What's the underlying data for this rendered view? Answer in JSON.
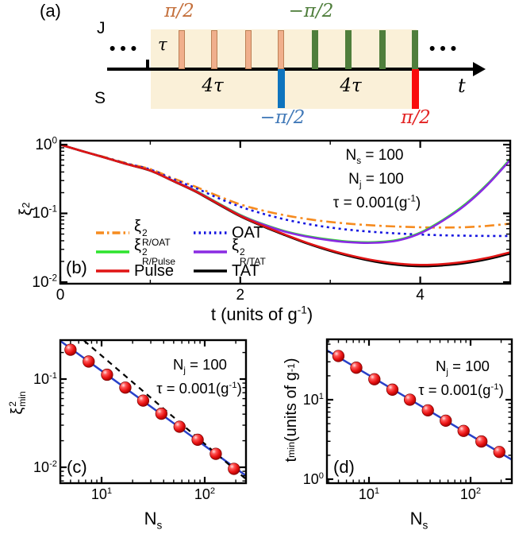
{
  "pulse_diagram": {
    "panel_label": "(a)",
    "j_label": "J",
    "s_label": "S",
    "tau_label": "τ",
    "four_tau_label": "4τ",
    "t_label": "t",
    "dots": "•••",
    "top_left_pulse_label": "π/2",
    "top_right_pulse_label": "−π/2",
    "bottom_left_pulse_label": "−π/2",
    "bottom_right_pulse_label": "π/2",
    "colors": {
      "background": "#FAF0D8",
      "j_pulse": "#F0AF8C",
      "j_pulse_border": "#BC8055",
      "neg_pulse": "#4F7E3C",
      "s_pulse_blue": "#0E74BE",
      "s_pulse_red": "#F90D0D",
      "top_left_text": "#C4703C",
      "top_right_text": "#4F7E3C",
      "bottom_left_text": "#4179B8",
      "bottom_right_text": "#E32222"
    }
  },
  "chart_data": {
    "b": {
      "type": "line",
      "panel_label": "(b)",
      "xlabel": [
        {
          "v": "t (units of g",
          "sup": "-1"
        },
        {
          "v": ")"
        }
      ],
      "ylabel": [
        {
          "v": "ξ",
          "sup": "2"
        }
      ],
      "xlim": [
        0,
        5
      ],
      "ylim": [
        0.0095,
        1.14
      ],
      "yscale": "log",
      "grid": false,
      "xticks": [
        {
          "v": 0,
          "label": [
            {
              "v": "0"
            }
          ]
        },
        {
          "v": 2,
          "label": [
            {
              "v": "2"
            }
          ]
        },
        {
          "v": 4,
          "label": [
            {
              "v": "4"
            }
          ]
        }
      ],
      "xminor": [
        1,
        3
      ],
      "yticks": [
        {
          "v": 1,
          "label": [
            {
              "v": "10",
              "sup": "0"
            }
          ]
        },
        {
          "v": 0.1,
          "label": [
            {
              "v": "10",
              "sup": "-1"
            }
          ]
        },
        {
          "v": 0.01,
          "label": [
            {
              "v": "10",
              "sup": "-2"
            }
          ]
        }
      ],
      "annotations": [
        [
          {
            "v": "N",
            "sub": "s"
          },
          {
            "v": " = 100"
          }
        ],
        [
          {
            "v": "N",
            "sub": "j"
          },
          {
            "v": " = 100"
          }
        ],
        [
          {
            "v": "τ = 0.001(g",
            "sup": "-1"
          },
          {
            "v": ")"
          }
        ]
      ],
      "legend_position": "lower-left-inside",
      "legend": [
        {
          "label": [
            {
              "v": "ξ",
              "sup": "2",
              "sub": "R/OAT"
            }
          ],
          "color": "#F68B1F",
          "style": "dashdot"
        },
        {
          "label": [
            {
              "v": "OAT"
            }
          ],
          "color": "#1414E0",
          "style": "dotted"
        },
        {
          "label": [
            {
              "v": "ξ",
              "sup": "2",
              "sub": "R/Pulse"
            }
          ],
          "color": "#2EE32E",
          "style": "solid"
        },
        {
          "label": [
            {
              "v": "ξ",
              "sup": "2",
              "sub": "R/TAT"
            }
          ],
          "color": "#8A2BE2",
          "style": "solid"
        },
        {
          "label": [
            {
              "v": "Pulse"
            }
          ],
          "color": "#E01414",
          "style": "solid"
        },
        {
          "label": [
            {
              "v": "TAT"
            }
          ],
          "color": "#000000",
          "style": "solid"
        }
      ],
      "t": [
        0,
        0.25,
        0.5,
        0.75,
        1,
        1.25,
        1.5,
        1.75,
        2,
        2.25,
        2.5,
        2.75,
        3,
        3.25,
        3.5,
        3.75,
        4,
        4.25,
        4.5,
        4.75,
        5
      ],
      "series": [
        {
          "name": "R/OAT",
          "color": "#F68B1F",
          "style": "dashdot",
          "y": [
            1.0,
            0.8,
            0.655,
            0.53,
            0.44,
            0.325,
            0.245,
            0.18,
            0.135,
            0.11,
            0.0935,
            0.0825,
            0.075,
            0.07,
            0.0665,
            0.0642,
            0.0628,
            0.0622,
            0.063,
            0.0658,
            0.071
          ]
        },
        {
          "name": "OAT",
          "color": "#1414E0",
          "style": "dotted",
          "y": [
            1.0,
            0.8,
            0.65,
            0.525,
            0.435,
            0.315,
            0.235,
            0.168,
            0.125,
            0.099,
            0.0815,
            0.07,
            0.0622,
            0.057,
            0.0535,
            0.051,
            0.0492,
            0.048,
            0.0473,
            0.047,
            0.047
          ]
        },
        {
          "name": "R/Pulse",
          "color": "#2EE32E",
          "style": "solid",
          "y": [
            1.0,
            0.8,
            0.645,
            0.515,
            0.42,
            0.3,
            0.215,
            0.142,
            0.095,
            0.07,
            0.055,
            0.0465,
            0.0415,
            0.0386,
            0.0381,
            0.0412,
            0.0525,
            0.08,
            0.136,
            0.27,
            0.62
          ]
        },
        {
          "name": "R/TAT",
          "color": "#8A2BE2",
          "style": "solid",
          "y": [
            1.0,
            0.8,
            0.645,
            0.515,
            0.42,
            0.3,
            0.213,
            0.14,
            0.0935,
            0.069,
            0.054,
            0.0456,
            0.0406,
            0.0377,
            0.0373,
            0.0403,
            0.0512,
            0.078,
            0.132,
            0.262,
            0.6
          ]
        },
        {
          "name": "TAT",
          "color": "#000000",
          "style": "solid",
          "y": [
            1.0,
            0.8,
            0.645,
            0.515,
            0.418,
            0.296,
            0.208,
            0.137,
            0.0905,
            0.0648,
            0.048,
            0.0362,
            0.0284,
            0.0232,
            0.0198,
            0.0178,
            0.017,
            0.0175,
            0.0189,
            0.0216,
            0.026
          ]
        },
        {
          "name": "Pulse",
          "color": "#E01414",
          "style": "solid",
          "y": [
            1.0,
            0.8,
            0.645,
            0.515,
            0.42,
            0.298,
            0.21,
            0.139,
            0.092,
            0.066,
            0.049,
            0.037,
            0.0292,
            0.024,
            0.0206,
            0.0186,
            0.0178,
            0.0183,
            0.0198,
            0.0226,
            0.0272
          ]
        }
      ]
    },
    "c": {
      "type": "scatter",
      "panel_label": "(c)",
      "xlabel": [
        {
          "v": "N",
          "sub": "s"
        }
      ],
      "ylabel": [
        {
          "v": "ξ",
          "sup": "2",
          "sub": "min"
        }
      ],
      "xlim": [
        4.0,
        251
      ],
      "ylim": [
        0.0066,
        0.276
      ],
      "xscale": "log",
      "yscale": "log",
      "xticks": [
        {
          "v": 10,
          "label": [
            {
              "v": "10",
              "sup": "1"
            }
          ]
        },
        {
          "v": 100,
          "label": [
            {
              "v": "10",
              "sup": "2"
            }
          ]
        }
      ],
      "yticks": [
        {
          "v": 0.1,
          "label": [
            {
              "v": "10",
              "sup": "-1"
            }
          ]
        },
        {
          "v": 0.01,
          "label": [
            {
              "v": "10",
              "sup": "-2"
            }
          ]
        }
      ],
      "annotations": [
        [
          {
            "v": "N",
            "sub": "j"
          },
          {
            "v": " = 100"
          }
        ],
        [
          {
            "v": "τ = 0.001(g",
            "sup": "-1"
          },
          {
            "v": ")"
          }
        ]
      ],
      "points_x": [
        5,
        7.5,
        11.3,
        17,
        25.3,
        38,
        57,
        85.4,
        128,
        192
      ],
      "points_y": [
        0.215,
        0.158,
        0.112,
        0.08,
        0.057,
        0.0405,
        0.0288,
        0.0205,
        0.0142,
        0.0096
      ],
      "marker_color": "#E80F0F",
      "fit_line_color": "#2840C8",
      "dashed_line": {
        "slope": -1,
        "anchor_x": 192,
        "anchor_y": 0.0096,
        "color": "#000000"
      }
    },
    "d": {
      "type": "scatter",
      "panel_label": "(d)",
      "xlabel": [
        {
          "v": "N",
          "sub": "s"
        }
      ],
      "ylabel": [
        {
          "v": "t",
          "sub": "min"
        },
        {
          "v": " (units of g",
          "sup": "-1"
        },
        {
          "v": ")"
        }
      ],
      "xlim": [
        3.86,
        255
      ],
      "ylim": [
        0.89,
        57.5
      ],
      "xscale": "log",
      "yscale": "log",
      "xticks": [
        {
          "v": 10,
          "label": [
            {
              "v": "10",
              "sup": "1"
            }
          ]
        },
        {
          "v": 100,
          "label": [
            {
              "v": "10",
              "sup": "2"
            }
          ]
        }
      ],
      "yticks": [
        {
          "v": 10,
          "label": [
            {
              "v": "10",
              "sup": "1"
            }
          ]
        },
        {
          "v": 1,
          "label": [
            {
              "v": "10",
              "sup": "0"
            }
          ]
        }
      ],
      "annotations": [
        [
          {
            "v": "N",
            "sub": "j"
          },
          {
            "v": " = 100"
          }
        ],
        [
          {
            "v": "τ = 0.001(g",
            "sup": "-1"
          },
          {
            "v": ")"
          }
        ]
      ],
      "points_x": [
        5,
        7.5,
        11.3,
        17,
        25.3,
        38,
        57,
        85.4,
        128,
        192
      ],
      "points_y": [
        35.5,
        25.3,
        18.1,
        13.4,
        10.0,
        7.35,
        5.45,
        4.05,
        2.98,
        2.2
      ],
      "marker_color": "#E80F0F",
      "fit_line_color": "#2840C8"
    }
  }
}
